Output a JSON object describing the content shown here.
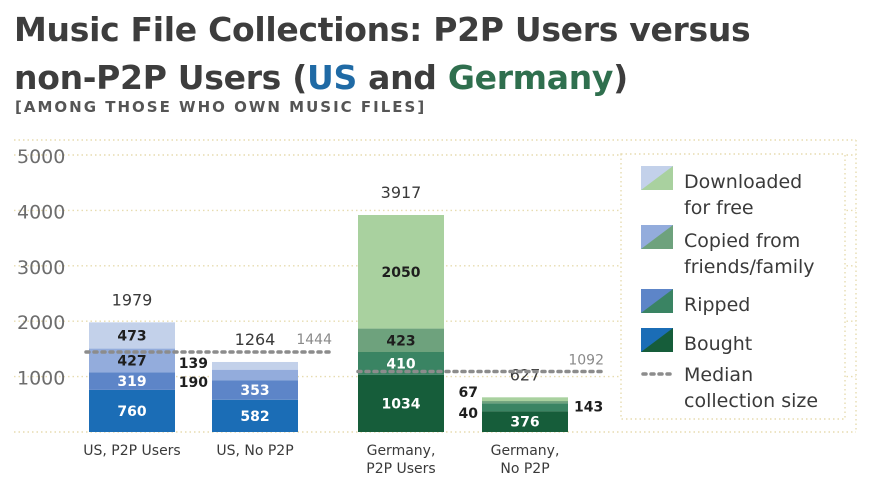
{
  "title": {
    "line1": "Music File Collections: P2P Users versus",
    "line2_prefix": "non-P2P Users (",
    "line2_us": "US",
    "line2_and": " and ",
    "line2_de": "Germany",
    "line2_suffix": ")"
  },
  "subtitle": "[AMONG THOSE WHO OWN MUSIC FILES]",
  "colors": {
    "us_accent": "#1f6aa5",
    "de_accent": "#2f6f4e",
    "us_downloaded": "#c3d1ea",
    "us_copied": "#93acdc",
    "us_ripped": "#5d85c8",
    "us_bought": "#1b6db6",
    "de_downloaded": "#a9d19f",
    "de_copied": "#6ea27d",
    "de_ripped": "#3a8463",
    "de_bought": "#165d3a",
    "median_line": "#8c8c8c",
    "grid": "#e7dcb0"
  },
  "chart_data": {
    "type": "bar",
    "stacked": true,
    "title": "Music File Collections: P2P Users versus non-P2P Users (US and Germany)",
    "subtitle": "[AMONG THOSE WHO OWN MUSIC FILES]",
    "ylim": [
      0,
      5000
    ],
    "yticks": [
      1000,
      2000,
      3000,
      4000,
      5000
    ],
    "grid": true,
    "legend_position": "right",
    "categories": [
      "US, P2P Users",
      "US, No P2P",
      "Germany, P2P Users",
      "Germany, No P2P"
    ],
    "category_lines": [
      [
        "US, P2P Users"
      ],
      [
        "US, No P2P"
      ],
      [
        "Germany,",
        "P2P Users"
      ],
      [
        "Germany,",
        "No P2P"
      ]
    ],
    "series": [
      {
        "name": "Bought",
        "values": [
          760,
          582,
          1034,
          376
        ]
      },
      {
        "name": "Ripped",
        "values": [
          319,
          353,
          410,
          143
        ]
      },
      {
        "name": "Copied from friends/family",
        "values": [
          427,
          190,
          423,
          40
        ]
      },
      {
        "name": "Downloaded for free",
        "values": [
          473,
          139,
          2050,
          67
        ]
      }
    ],
    "totals": [
      1979,
      1264,
      3917,
      627
    ],
    "medians": [
      {
        "group": "US",
        "value": 1444
      },
      {
        "group": "Germany",
        "value": 1092
      }
    ],
    "legend": [
      {
        "lines": [
          "Downloaded",
          "for free"
        ],
        "key": "downloaded"
      },
      {
        "lines": [
          "Copied from",
          "friends/family"
        ],
        "key": "copied"
      },
      {
        "lines": [
          "Ripped"
        ],
        "key": "ripped"
      },
      {
        "lines": [
          "Bought"
        ],
        "key": "bought"
      },
      {
        "lines": [
          "Median",
          "collection size"
        ],
        "key": "median"
      }
    ]
  }
}
